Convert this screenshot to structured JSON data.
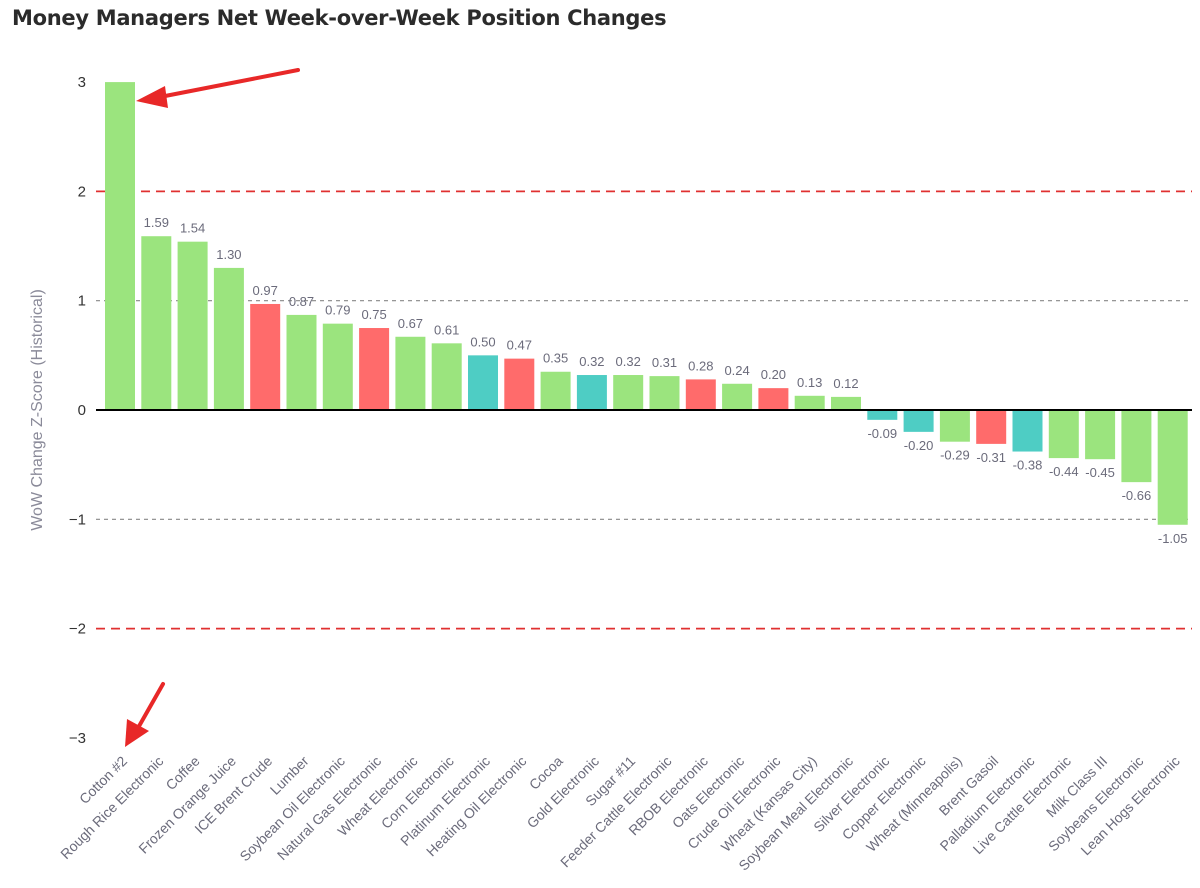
{
  "chart_data": {
    "type": "bar",
    "title": "Money Managers Net Week-over-Week Position Changes",
    "ylabel": "WoW Change Z-Score (Historical)",
    "ylim": [
      -3,
      3
    ],
    "yticks": [
      3,
      2,
      1,
      0,
      -1,
      -2,
      -3
    ],
    "ytick_labels": [
      "3",
      "2",
      "1",
      "0",
      "−1",
      "−2",
      "−3"
    ],
    "grid": false,
    "reference_lines": [
      {
        "y": 2,
        "style": "dashed",
        "color": "#e03030"
      },
      {
        "y": 1,
        "style": "dashed",
        "color": "#888888"
      },
      {
        "y": 0,
        "style": "solid",
        "color": "#000000"
      },
      {
        "y": -1,
        "style": "dashed",
        "color": "#888888"
      },
      {
        "y": -2,
        "style": "dashed",
        "color": "#e03030"
      }
    ],
    "colors": {
      "green": "#9be47e",
      "red": "#ff6b6b",
      "teal": "#4ecdc4"
    },
    "categories": [
      "Cotton #2",
      "Rough Rice Electronic",
      "Coffee",
      "Frozen Orange Juice",
      "ICE Brent Crude",
      "Lumber",
      "Soybean Oil Electronic",
      "Natural Gas Electronic",
      "Wheat Electronic",
      "Corn Electronic",
      "Platinum Electronic",
      "Heating Oil Electronic",
      "Cocoa",
      "Gold Electronic",
      "Sugar #11",
      "Feeder Cattle Electronic",
      "RBOB Electronic",
      "Oats Electronic",
      "Crude Oil Electronic",
      "Wheat (Kansas City)",
      "Soybean Meal Electronic",
      "Silver Electronic",
      "Copper Electronic",
      "Wheat (Minneapolis)",
      "Brent Gasoil",
      "Palladium Electronic",
      "Live Cattle Electronic",
      "Milk Class III",
      "Soybeans Electronic",
      "Lean Hogs Electronic"
    ],
    "values": [
      3.0,
      1.59,
      1.54,
      1.3,
      0.97,
      0.87,
      0.79,
      0.75,
      0.67,
      0.61,
      0.5,
      0.47,
      0.35,
      0.32,
      0.32,
      0.31,
      0.28,
      0.24,
      0.2,
      0.13,
      0.12,
      -0.09,
      -0.2,
      -0.29,
      -0.31,
      -0.38,
      -0.44,
      -0.45,
      -0.66,
      -1.05
    ],
    "value_labels": [
      "",
      "1.59",
      "1.54",
      "1.30",
      "0.97",
      "0.87",
      "0.79",
      "0.75",
      "0.67",
      "0.61",
      "0.50",
      "0.47",
      "0.35",
      "0.32",
      "0.32",
      "0.31",
      "0.28",
      "0.24",
      "0.20",
      "0.13",
      "0.12",
      "-0.09",
      "-0.20",
      "-0.29",
      "-0.31",
      "-0.38",
      "-0.44",
      "-0.45",
      "-0.66",
      "-1.05"
    ],
    "bar_colors": [
      "green",
      "green",
      "green",
      "green",
      "red",
      "green",
      "green",
      "red",
      "green",
      "green",
      "teal",
      "red",
      "green",
      "teal",
      "green",
      "green",
      "red",
      "green",
      "red",
      "green",
      "green",
      "teal",
      "teal",
      "green",
      "red",
      "teal",
      "green",
      "green",
      "green",
      "green"
    ],
    "annotations": [
      {
        "type": "arrow",
        "color": "#e82828",
        "target": "Cotton #2 bar top"
      },
      {
        "type": "arrow",
        "color": "#e82828",
        "target": "Cotton #2 category label"
      }
    ]
  }
}
